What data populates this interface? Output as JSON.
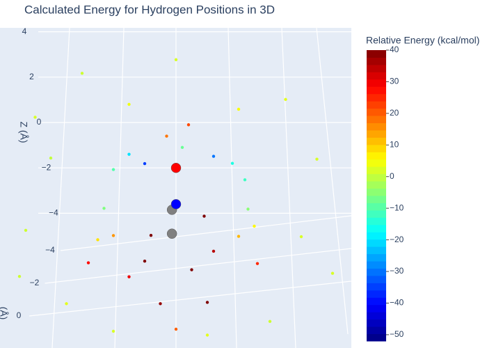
{
  "chart_data": {
    "type": "scatter3d",
    "title": "Calculated Energy for Hydrogen Positions in 3D",
    "z_axis_title": "Z (Å)",
    "y_axis_title": "(Å)",
    "colorbar_title": "Relative Energy (kcal/mol)",
    "grid": true,
    "zticks": [
      4,
      2,
      0,
      {
        "value": -2,
        "label": "−2"
      },
      {
        "value": -4,
        "label": "−4"
      }
    ],
    "yticks": [
      {
        "value": -4,
        "label": "−4"
      },
      {
        "value": -2,
        "label": "−2"
      },
      0
    ],
    "clim": [
      -52,
      40
    ],
    "cticks": [
      40,
      30,
      20,
      10,
      0,
      {
        "value": -10,
        "label": "−10"
      },
      {
        "value": -20,
        "label": "−20"
      },
      {
        "value": -30,
        "label": "−30"
      },
      {
        "value": -40,
        "label": "−40"
      },
      {
        "value": -50,
        "label": "−50"
      }
    ],
    "colorscale": [
      "#00007f",
      "#0000ff",
      "#007fff",
      "#00ffff",
      "#7fff7f",
      "#ffff00",
      "#ff7f00",
      "#ff0000",
      "#7f0000"
    ],
    "points": {
      "x": [
        -4.5,
        -3,
        3.5,
        4.5,
        -4.8,
        4,
        -3.5,
        3,
        0,
        -1.5,
        2,
        -4,
        5,
        -5,
        1,
        -2,
        2.5,
        -2.5,
        -2,
        2,
        -1,
        0.5,
        1.2,
        -0.5,
        1,
        -1.5,
        0,
        -0.3,
        0.4,
        -2.8,
        2.6,
        -0.8,
        0.9,
        -1.5,
        -1,
        1.2,
        1.8,
        -2,
        2.2,
        0.2,
        -2.3,
        2.3
      ],
      "y": [
        1,
        -1,
        0.5,
        -0.5,
        1.5,
        -1,
        0.5,
        1,
        -1,
        0,
        -0.5,
        1,
        -1.5,
        0.5,
        1,
        0,
        1,
        1,
        0.5,
        -0.5,
        0.3,
        -0.3,
        0.2,
        0.5,
        -0.2,
        0,
        0.3,
        0,
        0,
        0.5,
        -0.5,
        0.2,
        -0.2,
        0,
        0.3,
        -0.3,
        0,
        0.2,
        -0.2,
        0,
        0.5,
        -0.5
      ],
      "z": [
        0.6,
        1.8,
        1.2,
        -1.8,
        -4.2,
        -5.4,
        -7.8,
        -8.4,
        2.4,
        0.8,
        0.4,
        -1.2,
        -7.2,
        -6.6,
        -9,
        -9.2,
        -4.2,
        -4.8,
        -4.8,
        -5.2,
        -6,
        -6.6,
        -5.6,
        -7.8,
        -8,
        -6.8,
        -9,
        -0.6,
        -0.1,
        -6,
        -6.4,
        -4.9,
        -4.2,
        -1.4,
        -1.7,
        -1.6,
        -1.8,
        -2,
        -2.6,
        -1.1,
        -3.6,
        -4
      ],
      "values": [
        2,
        1,
        3,
        2,
        1,
        2,
        3,
        1,
        2,
        4,
        5,
        0,
        2,
        1,
        3,
        2,
        6,
        8,
        15,
        12,
        40,
        40,
        35,
        38,
        40,
        30,
        20,
        18,
        22,
        28,
        25,
        40,
        40,
        -20,
        -35,
        -30,
        -15,
        -10,
        -12,
        -8,
        -6,
        -5
      ]
    },
    "atoms": {
      "x": [
        -0.13,
        0,
        -0.13,
        0
      ],
      "y": [
        0.4,
        0,
        0,
        0
      ],
      "z": [
        -3.7,
        -2,
        -4.9,
        -3.6
      ],
      "colors": [
        "#808080",
        "#ff0000",
        "#808080",
        "#0000ff"
      ]
    }
  }
}
